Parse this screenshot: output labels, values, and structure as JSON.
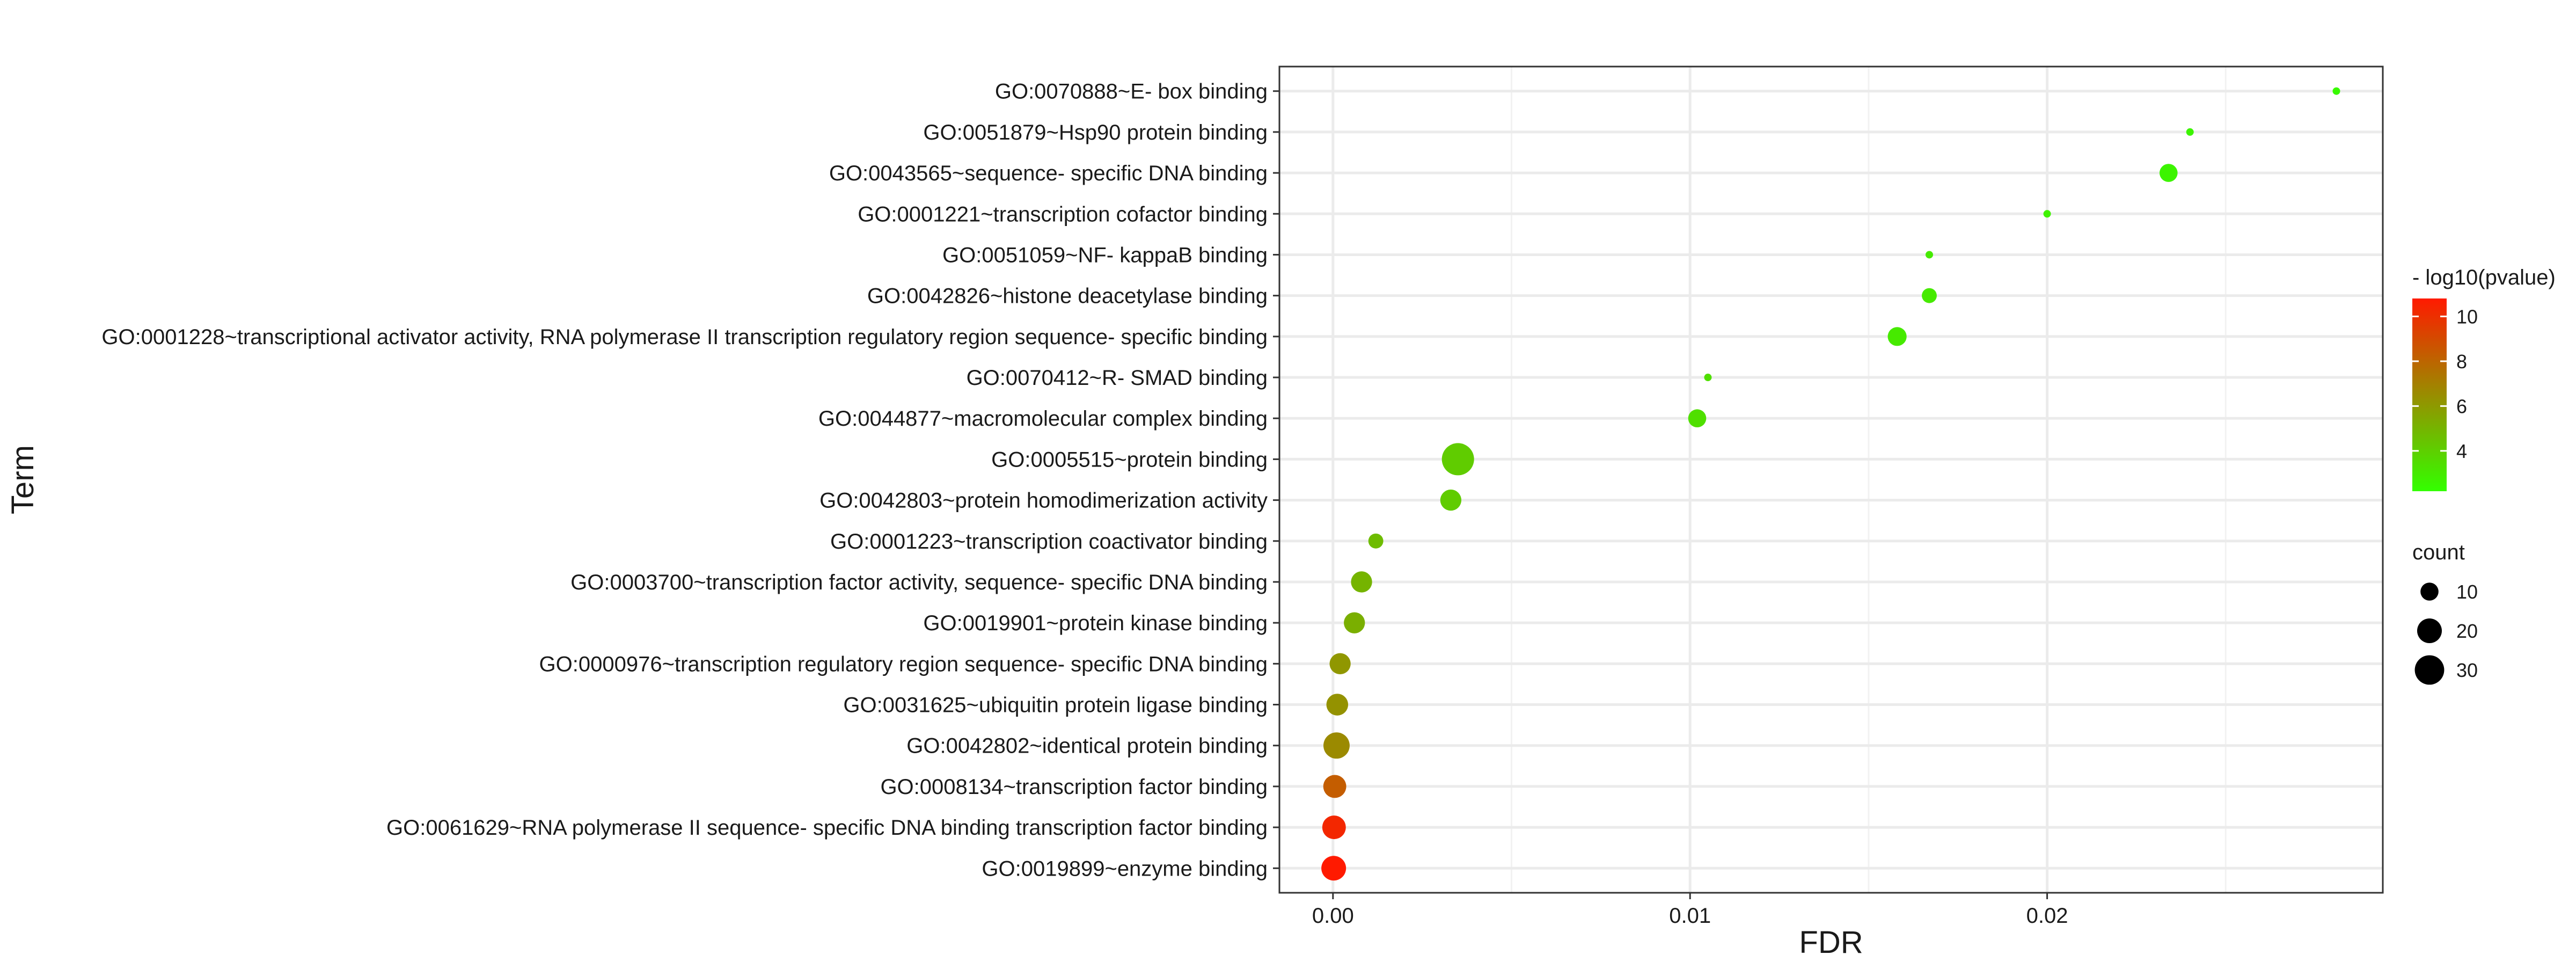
{
  "chart_data": {
    "type": "scatter",
    "xlabel": "FDR",
    "ylabel": "Term",
    "xlim": [
      -0.0015,
      0.0294
    ],
    "x_ticks": [
      0.0,
      0.01,
      0.02
    ],
    "x_tick_labels": [
      "0.00",
      "0.01",
      "0.02"
    ],
    "grid": true,
    "legend_position": "right",
    "categories": [
      "GO:0019899~enzyme binding",
      "GO:0061629~RNA polymerase II sequence- specific DNA binding transcription factor binding",
      "GO:0008134~transcription factor binding",
      "GO:0042802~identical protein binding",
      "GO:0031625~ubiquitin protein ligase binding",
      "GO:0000976~transcription regulatory region sequence- specific DNA binding",
      "GO:0019901~protein kinase binding",
      "GO:0003700~transcription factor activity, sequence- specific DNA binding",
      "GO:0001223~transcription coactivator binding",
      "GO:0042803~protein homodimerization activity",
      "GO:0005515~protein binding",
      "GO:0044877~macromolecular complex binding",
      "GO:0070412~R- SMAD binding",
      "GO:0001228~transcriptional activator activity, RNA polymerase II transcription regulatory region sequence- specific binding",
      "GO:0042826~histone deacetylase binding",
      "GO:0051059~NF- kappaB binding",
      "GO:0001221~transcription cofactor binding",
      "GO:0043565~sequence- specific DNA binding",
      "GO:0051879~Hsp90 protein binding",
      "GO:0070888~E- box binding"
    ],
    "points": [
      {
        "term": "GO:0019899~enzyme binding",
        "fdr": 2e-05,
        "neg_log10_pvalue": 10.8,
        "count": 20
      },
      {
        "term": "GO:0061629~RNA polymerase II sequence- specific DNA binding transcription factor binding",
        "fdr": 3e-05,
        "neg_log10_pvalue": 10.3,
        "count": 18
      },
      {
        "term": "GO:0008134~transcription factor binding",
        "fdr": 5e-05,
        "neg_log10_pvalue": 8.3,
        "count": 17
      },
      {
        "term": "GO:0042802~identical protein binding",
        "fdr": 0.0001,
        "neg_log10_pvalue": 6.6,
        "count": 23
      },
      {
        "term": "GO:0031625~ubiquitin protein ligase binding",
        "fdr": 0.00012,
        "neg_log10_pvalue": 6.3,
        "count": 15
      },
      {
        "term": "GO:0000976~transcription regulatory region sequence- specific DNA binding",
        "fdr": 0.0002,
        "neg_log10_pvalue": 6.1,
        "count": 14
      },
      {
        "term": "GO:0019901~protein kinase binding",
        "fdr": 0.0006,
        "neg_log10_pvalue": 5.2,
        "count": 14
      },
      {
        "term": "GO:0003700~transcription factor activity, sequence- specific DNA binding",
        "fdr": 0.0008,
        "neg_log10_pvalue": 5.0,
        "count": 14
      },
      {
        "term": "GO:0001223~transcription coactivator binding",
        "fdr": 0.0012,
        "neg_log10_pvalue": 4.7,
        "count": 7
      },
      {
        "term": "GO:0042803~protein homodimerization activity",
        "fdr": 0.0033,
        "neg_log10_pvalue": 4.1,
        "count": 14
      },
      {
        "term": "GO:0005515~protein binding",
        "fdr": 0.0035,
        "neg_log10_pvalue": 4.1,
        "count": 37
      },
      {
        "term": "GO:0044877~macromolecular complex binding",
        "fdr": 0.0102,
        "neg_log10_pvalue": 3.4,
        "count": 10
      },
      {
        "term": "GO:0070412~R- SMAD binding",
        "fdr": 0.0105,
        "neg_log10_pvalue": 3.4,
        "count": 4
      },
      {
        "term": "GO:0001228~transcriptional activator activity, RNA polymerase II transcription regulatory region sequence- specific binding",
        "fdr": 0.0158,
        "neg_log10_pvalue": 3.0,
        "count": 11
      },
      {
        "term": "GO:0042826~histone deacetylase binding",
        "fdr": 0.0167,
        "neg_log10_pvalue": 3.0,
        "count": 7
      },
      {
        "term": "GO:0051059~NF- kappaB binding",
        "fdr": 0.0167,
        "neg_log10_pvalue": 3.0,
        "count": 4
      },
      {
        "term": "GO:0001221~transcription cofactor binding",
        "fdr": 0.02,
        "neg_log10_pvalue": 2.7,
        "count": 4
      },
      {
        "term": "GO:0043565~sequence- specific DNA binding",
        "fdr": 0.0234,
        "neg_log10_pvalue": 2.6,
        "count": 10
      },
      {
        "term": "GO:0051879~Hsp90 protein binding",
        "fdr": 0.024,
        "neg_log10_pvalue": 2.6,
        "count": 4
      },
      {
        "term": "GO:0070888~E- box binding",
        "fdr": 0.0281,
        "neg_log10_pvalue": 2.4,
        "count": 4
      }
    ],
    "color_legend": {
      "title": "- log10(pvalue)",
      "min": 2.2,
      "max": 10.8,
      "ticks": [
        4,
        6,
        8,
        10
      ],
      "tick_labels": [
        "4",
        "6",
        "8",
        "10"
      ],
      "color_low": "#33ff00",
      "color_high": "#ff1a00"
    },
    "size_legend": {
      "title": "count",
      "values": [
        10,
        20,
        30
      ],
      "labels": [
        "10",
        "20",
        "30"
      ],
      "count_range": [
        4,
        37
      ],
      "point_color": "#000000"
    },
    "colors": {
      "background": "#ffffff",
      "grid_major": "#ebebeb",
      "grid_minor": "#f2f2f2",
      "panel_border": "#333333"
    }
  }
}
